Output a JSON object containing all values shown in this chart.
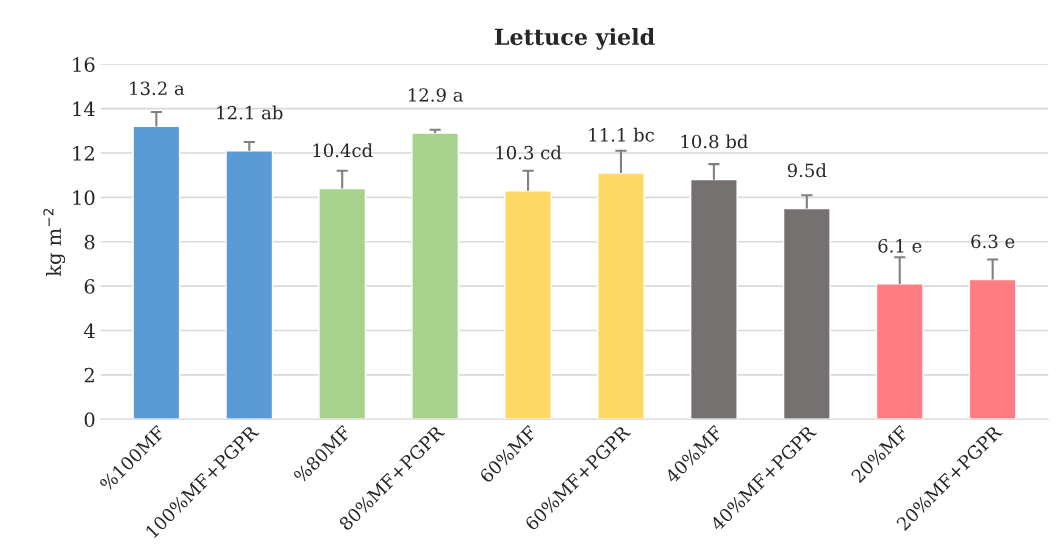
{
  "chart_data": {
    "type": "bar",
    "title": "Lettuce yield",
    "ylabel": "kg m$^{−2}$",
    "categories": [
      "%100MF",
      "100%MF+PGPR",
      "%80MF",
      "80%MF+PGPR",
      "60%MF",
      "60%MF+PGPR",
      "40%MF",
      "40%MF+PGPR",
      "20%MF",
      "20%MF+PGPR"
    ],
    "values": [
      13.2,
      12.1,
      10.4,
      12.9,
      10.3,
      11.1,
      10.8,
      9.5,
      6.1,
      6.3
    ],
    "colors": [
      "#5b9bd5",
      "#5b9bd5",
      "#a9d18e",
      "#a9d18e",
      "#ffd966",
      "#ffd966",
      "#767171",
      "#767171",
      "#ff7c80",
      "#ff7c80"
    ],
    "errors": [
      [
        13.2,
        13.85
      ],
      [
        12.1,
        12.5
      ],
      [
        10.4,
        11.2
      ],
      [
        12.9,
        13.05
      ],
      [
        10.3,
        11.2
      ],
      [
        11.1,
        12.1
      ],
      [
        10.8,
        11.5
      ],
      [
        9.5,
        10.1
      ],
      [
        6.1,
        7.3
      ],
      [
        6.3,
        7.2
      ]
    ],
    "value_labels": [
      "13.2 a",
      "12.1 ab",
      "10.4cd",
      "12.9 a",
      "10.3 cd",
      "11.1 bc",
      "10.8 bd",
      "9.5d",
      "6.1 e",
      "6.3 e"
    ],
    "ylim": [
      0,
      16
    ],
    "yticks": [
      0,
      2,
      4,
      6,
      8,
      10,
      12,
      14,
      16
    ],
    "grid": "y",
    "legend": false
  }
}
